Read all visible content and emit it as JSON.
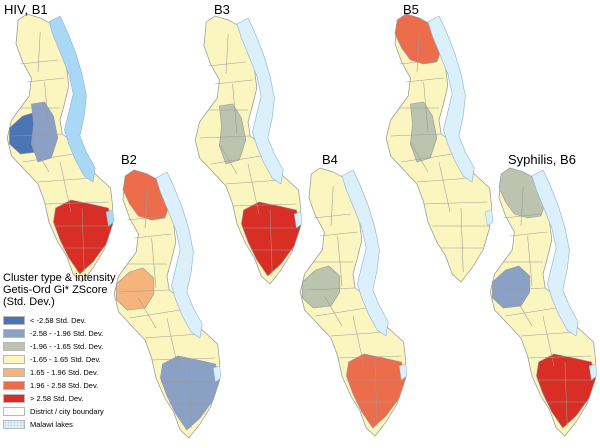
{
  "maps": [
    {
      "id": "B1",
      "label": "HIV,  B1",
      "hotspots": [
        {
          "region": "south",
          "class": "gt_2_58"
        },
        {
          "region": "central_west",
          "class": "lt_neg_2_58"
        },
        {
          "region": "central_mid",
          "class": "neg_2_58_to_neg_1_96"
        }
      ]
    },
    {
      "id": "B2",
      "label": "B2",
      "hotspots": [
        {
          "region": "north",
          "class": "1_96_to_2_58"
        },
        {
          "region": "central_west",
          "class": "1_65_to_1_96"
        },
        {
          "region": "south",
          "class": "neg_2_58_to_neg_1_96"
        }
      ]
    },
    {
      "id": "B3",
      "label": "B3",
      "hotspots": [
        {
          "region": "central_mid",
          "class": "neg_1_96_to_neg_1_65"
        },
        {
          "region": "south",
          "class": "gt_2_58"
        }
      ]
    },
    {
      "id": "B4",
      "label": "B4",
      "hotspots": [
        {
          "region": "central_west",
          "class": "neg_1_96_to_neg_1_65"
        },
        {
          "region": "south",
          "class": "1_96_to_2_58"
        }
      ]
    },
    {
      "id": "B5",
      "label": "B5",
      "hotspots": [
        {
          "region": "north",
          "class": "1_96_to_2_58"
        },
        {
          "region": "central_mid",
          "class": "neg_1_96_to_neg_1_65"
        }
      ]
    },
    {
      "id": "B6",
      "label": "Syphilis, B6",
      "hotspots": [
        {
          "region": "north",
          "class": "neg_1_96_to_neg_1_65"
        },
        {
          "region": "central_west",
          "class": "neg_2_58_to_neg_1_96"
        },
        {
          "region": "south",
          "class": "gt_2_58"
        }
      ]
    }
  ],
  "legend": {
    "title_lines": [
      "Cluster type & intensity",
      "Getis-Ord Gi* ZScore",
      "(Std. Dev.)"
    ],
    "items": [
      {
        "key": "lt_neg_2_58",
        "label": "< -2.58 Std. Dev.",
        "color": "#4a74b4"
      },
      {
        "key": "neg_2_58_to_neg_1_96",
        "label": "-2.58 - -1.96 Std. Dev.",
        "color": "#8aa0c4"
      },
      {
        "key": "neg_1_96_to_neg_1_65",
        "label": "-1.96 - -1.65 Std. Dev.",
        "color": "#bcc4b0"
      },
      {
        "key": "neg_1_65_to_1_65",
        "label": "-1.65 - 1.65 Std. Dev.",
        "color": "#fbf6c0"
      },
      {
        "key": "1_65_to_1_96",
        "label": "1.65 - 1.96 Std. Dev.",
        "color": "#f7b37c"
      },
      {
        "key": "1_96_to_2_58",
        "label": "1.96 - 2.58 Std. Dev.",
        "color": "#ec6d4c"
      },
      {
        "key": "gt_2_58",
        "label": "> 2.58 Std. Dev.",
        "color": "#d92e26"
      },
      {
        "key": "boundary",
        "label": "District / city boundary",
        "color": "#ffffff"
      },
      {
        "key": "lakes",
        "label": "Malawi lakes",
        "color": "#d8eef9"
      }
    ]
  },
  "colors": {
    "neutral_fill": "#fbf6c0",
    "boundary_stroke": "#9a9a9a",
    "lake_fill_B1": "#a8d8f5",
    "lake_fill": "#dcf0fb"
  }
}
